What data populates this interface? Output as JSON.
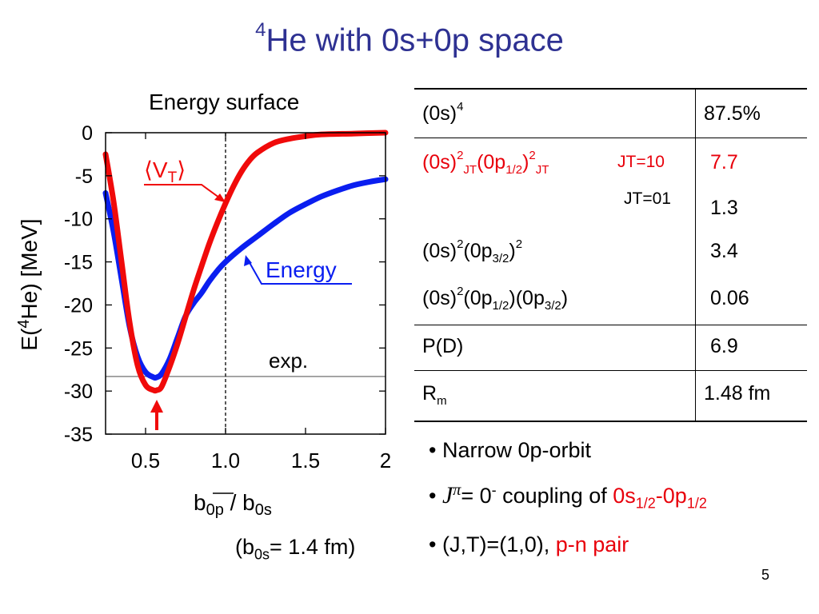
{
  "title": {
    "superscript": "4",
    "text": "He with 0s+0p space"
  },
  "chart_caption": "Energy surface",
  "chart_data": {
    "type": "line",
    "xlabel_main": "b",
    "xlabel_sub_num": "0p",
    "xlabel_mid": " / b",
    "xlabel_sub_den": "0s",
    "ylabel_pre": "E(",
    "ylabel_sup": "4",
    "ylabel_post": "He) [MeV]",
    "xlim": [
      0.25,
      2.0
    ],
    "ylim": [
      -35,
      0
    ],
    "xticks": [
      0.5,
      1.0,
      1.5,
      2.0
    ],
    "xtick_labels": [
      "0.5",
      "1.0",
      "1.5",
      "2"
    ],
    "yticks": [
      0,
      -5,
      -10,
      -15,
      -20,
      -25,
      -30,
      -35
    ],
    "ytick_labels": [
      "0",
      "-5",
      "-10",
      "-15",
      "-20",
      "-25",
      "-30",
      "-35"
    ],
    "exp_value": -28.3,
    "exp_label": "exp.",
    "vline_x": 1.0,
    "min_marker_x": 0.57,
    "series": [
      {
        "name": "Energy",
        "color": "#0a1ef0",
        "x": [
          0.25,
          0.3,
          0.35,
          0.4,
          0.45,
          0.5,
          0.55,
          0.57,
          0.6,
          0.65,
          0.7,
          0.75,
          0.8,
          0.85,
          0.9,
          0.95,
          1.0,
          1.1,
          1.2,
          1.3,
          1.4,
          1.5,
          1.6,
          1.7,
          1.8,
          1.9,
          2.0
        ],
        "y": [
          -7,
          -11.5,
          -17,
          -22.5,
          -26.0,
          -27.8,
          -28.4,
          -28.4,
          -28.0,
          -26.3,
          -23.8,
          -21.3,
          -19.8,
          -18.6,
          -17.2,
          -16.0,
          -15.0,
          -13.4,
          -12.0,
          -10.6,
          -9.3,
          -8.3,
          -7.4,
          -6.7,
          -6.1,
          -5.7,
          -5.4
        ]
      },
      {
        "name": "⟨Vₜ⟩",
        "label_main": "⟨V",
        "label_sub": "T",
        "label_end": "⟩",
        "color": "#f00a0a",
        "x": [
          0.25,
          0.3,
          0.35,
          0.4,
          0.45,
          0.5,
          0.55,
          0.57,
          0.6,
          0.65,
          0.7,
          0.75,
          0.8,
          0.85,
          0.9,
          0.95,
          1.0,
          1.05,
          1.1,
          1.15,
          1.2,
          1.3,
          1.4,
          1.5,
          1.6,
          1.8,
          2.0
        ],
        "y": [
          -2.5,
          -8,
          -15,
          -22,
          -27,
          -29.3,
          -29.9,
          -29.9,
          -29.5,
          -27.2,
          -24.5,
          -21.4,
          -18.3,
          -15.5,
          -12.8,
          -10.4,
          -8.2,
          -6.2,
          -4.5,
          -3.2,
          -2.3,
          -1.2,
          -0.7,
          -0.4,
          -0.2,
          -0.1,
          0.0
        ]
      }
    ]
  },
  "b0s_note": {
    "pre": "(b",
    "sub": "0s",
    "post": "= 1.4 fm)"
  },
  "table": {
    "r1": {
      "a": "(0s)",
      "a_sup": "4",
      "value": "87.5%"
    },
    "r2": {
      "a": "(0s)",
      "a_sup": "2",
      "a_sub": "JT",
      "b": "(0p",
      "b_sub": "1/2",
      "b_close": ")",
      "b_sup": "2",
      "b_sub2": "JT",
      "jt": "JT=10",
      "value": "7.7"
    },
    "r3": {
      "jt": "JT=01",
      "value": "1.3"
    },
    "r4": {
      "a": "(0s)",
      "a_sup": "2",
      "b": "(0p",
      "b_sub": "3/2",
      "b_close": ")",
      "b_sup": "2",
      "value": "3.4"
    },
    "r5": {
      "a": "(0s)",
      "a_sup": "2",
      "b": "(0p",
      "b_sub": "1/2",
      "b_close": ")(0p",
      "c_sub": "3/2",
      "c_close": ")",
      "value": "0.06"
    },
    "r6": {
      "label": "P(D)",
      "value": "6.9"
    },
    "r7": {
      "label": "R",
      "label_sub": "m",
      "value": "1.48 fm"
    }
  },
  "bullets": {
    "b1": {
      "text": "• Narrow 0p-orbit"
    },
    "b2": {
      "dot": "• ",
      "j": "J",
      "pi": "π",
      "eq": "= 0",
      "eq_sup": "-",
      "mid": " coupling of ",
      "red1": "0s",
      "red1_sub": "1/2",
      "dash": "-0p",
      "red2_sub": "1/2"
    },
    "b3": {
      "pre": "• (J,T)=(1,0), ",
      "red": "p-n pair"
    }
  },
  "page_number": "5"
}
